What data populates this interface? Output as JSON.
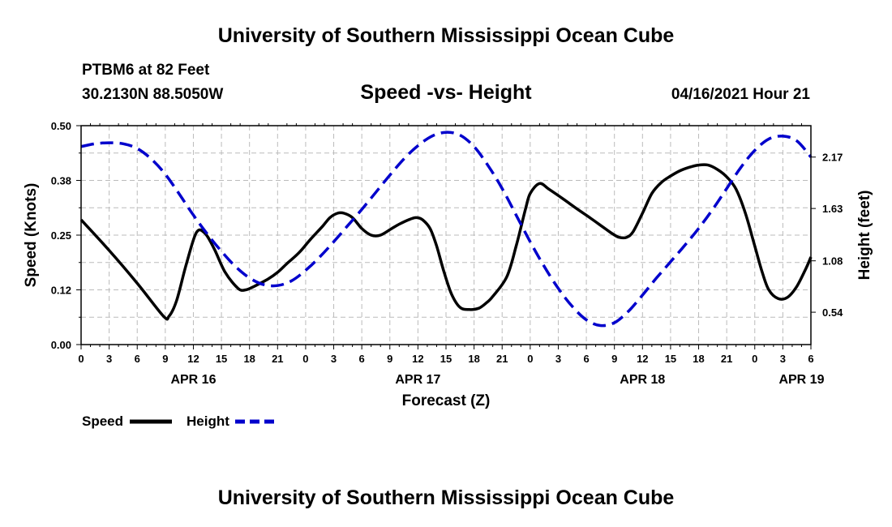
{
  "page": {
    "title_top": "University of Southern Mississippi Ocean Cube",
    "title_bottom": "University of Southern Mississippi Ocean Cube",
    "station": "PTBM6 at 82 Feet",
    "coords": "30.2130N  88.5050W",
    "subtitle": "Speed -vs- Height",
    "datetime": "04/16/2021 Hour 21"
  },
  "colors": {
    "speed": "#000000",
    "height": "#0000cc",
    "grid": "#bbbbbb"
  },
  "chart_data": {
    "type": "line",
    "title": "Speed -vs- Height",
    "xlabel": "Forecast (Z)",
    "ylabel": "Speed (Knots)",
    "y2label": "Height (feet)",
    "x_range": [
      0,
      78
    ],
    "ylim": [
      0,
      0.5
    ],
    "y2lim": [
      0.2,
      2.5
    ],
    "x_ticks": [
      0,
      3,
      6,
      9,
      12,
      15,
      18,
      21,
      24,
      27,
      30,
      33,
      36,
      39,
      42,
      45,
      48,
      51,
      54,
      57,
      60,
      63,
      66,
      69,
      72,
      75,
      78
    ],
    "x_tick_labels": [
      "0",
      "3",
      "6",
      "9",
      "12",
      "15",
      "18",
      "21",
      "0",
      "3",
      "6",
      "9",
      "12",
      "15",
      "18",
      "21",
      "0",
      "3",
      "6",
      "9",
      "12",
      "15",
      "18",
      "21",
      "0",
      "3",
      "6"
    ],
    "date_labels": [
      {
        "x": 12,
        "label": "APR 16"
      },
      {
        "x": 36,
        "label": "APR 17"
      },
      {
        "x": 60,
        "label": "APR 18"
      },
      {
        "x": 77,
        "label": "APR 19"
      }
    ],
    "y_ticks": [
      0,
      0.125,
      0.25,
      0.375,
      0.5
    ],
    "y_tick_labels": [
      "0.00",
      "0.12",
      "0.25",
      "0.38",
      "0.50"
    ],
    "y2_ticks": [
      0.54,
      1.08,
      1.63,
      2.17
    ],
    "y2_tick_labels": [
      "0.54",
      "1.08",
      "1.63",
      "2.17"
    ],
    "series": [
      {
        "name": "Speed",
        "axis": "left",
        "style": "solid",
        "x": [
          0,
          3,
          6,
          8.8,
          9.4,
          10.2,
          11.2,
          12.3,
          13.2,
          14.2,
          15.4,
          16.8,
          17.6,
          18.5,
          20,
          21,
          22,
          23.3,
          24.5,
          25.8,
          26.6,
          27.4,
          28.1,
          29,
          30,
          31,
          32,
          33.2,
          34,
          35,
          35.8,
          36.5,
          37.3,
          38,
          38.8,
          39.6,
          40.5,
          41.5,
          42.5,
          43.3,
          44,
          45.5,
          46.5,
          47.5,
          48,
          49,
          50,
          51.5,
          53,
          54.5,
          56,
          56.8,
          57.5,
          58.3,
          59,
          60,
          61,
          62,
          63,
          64,
          65,
          66,
          67,
          68,
          69,
          70,
          71,
          72,
          72.8,
          73.5,
          74.5,
          75.5,
          76.5,
          77.5,
          78
        ],
        "values": [
          0.285,
          0.215,
          0.14,
          0.065,
          0.065,
          0.1,
          0.18,
          0.255,
          0.255,
          0.22,
          0.165,
          0.128,
          0.125,
          0.133,
          0.15,
          0.165,
          0.185,
          0.21,
          0.24,
          0.27,
          0.29,
          0.3,
          0.3,
          0.29,
          0.265,
          0.25,
          0.25,
          0.265,
          0.275,
          0.285,
          0.29,
          0.285,
          0.265,
          0.225,
          0.165,
          0.115,
          0.085,
          0.08,
          0.083,
          0.095,
          0.11,
          0.155,
          0.225,
          0.31,
          0.345,
          0.368,
          0.355,
          0.333,
          0.31,
          0.288,
          0.265,
          0.253,
          0.245,
          0.245,
          0.258,
          0.3,
          0.345,
          0.37,
          0.385,
          0.397,
          0.405,
          0.41,
          0.41,
          0.4,
          0.383,
          0.355,
          0.3,
          0.225,
          0.165,
          0.125,
          0.105,
          0.108,
          0.133,
          0.175,
          0.2
        ]
      },
      {
        "name": "Height",
        "axis": "right",
        "style": "dashed",
        "x": [
          0,
          1.5,
          3,
          4.5,
          6,
          7.5,
          9,
          10.5,
          12,
          13.5,
          15,
          16.5,
          18,
          19.5,
          21,
          22.5,
          24,
          25.5,
          27,
          28.5,
          30,
          31.5,
          33,
          34.5,
          36,
          37.5,
          39,
          40.5,
          42,
          43.5,
          45,
          46.5,
          48,
          49.5,
          51,
          52.5,
          54,
          55.5,
          57,
          58.5,
          60,
          61.5,
          63,
          64.5,
          66,
          67.5,
          69,
          70.5,
          72,
          73.5,
          75,
          76.5,
          78
        ],
        "values": [
          2.28,
          2.31,
          2.32,
          2.31,
          2.26,
          2.15,
          1.99,
          1.78,
          1.56,
          1.36,
          1.18,
          1.02,
          0.9,
          0.83,
          0.82,
          0.87,
          0.98,
          1.12,
          1.28,
          1.45,
          1.62,
          1.8,
          1.98,
          2.15,
          2.29,
          2.39,
          2.43,
          2.4,
          2.28,
          2.08,
          1.84,
          1.56,
          1.28,
          1.02,
          0.79,
          0.6,
          0.46,
          0.4,
          0.43,
          0.55,
          0.72,
          0.9,
          1.07,
          1.24,
          1.42,
          1.62,
          1.84,
          2.06,
          2.24,
          2.36,
          2.39,
          2.34,
          2.17
        ]
      }
    ],
    "legend": [
      {
        "label": "Speed",
        "style": "solid"
      },
      {
        "label": "Height",
        "style": "dashed"
      }
    ],
    "legend_position": "bottom-left",
    "grid": true
  }
}
